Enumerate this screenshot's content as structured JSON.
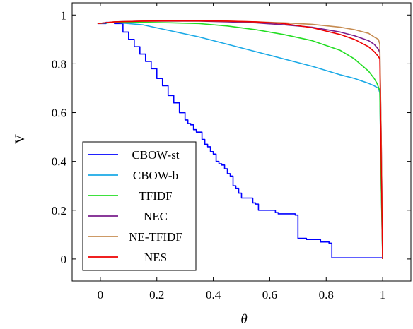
{
  "chart_data": {
    "type": "line",
    "xlabel": "θ",
    "ylabel": "V",
    "xlim": [
      -0.1,
      1.1
    ],
    "ylim": [
      -0.09,
      1.05
    ],
    "x_ticks": [
      0,
      0.2,
      0.4,
      0.6,
      0.8,
      1
    ],
    "y_ticks": [
      0,
      0.2,
      0.4,
      0.6,
      0.8,
      1
    ],
    "x_tick_labels": [
      "0",
      "0.2",
      "0.4",
      "0.6",
      "0.8",
      "1"
    ],
    "y_tick_labels": [
      "0",
      "0.2",
      "0.4",
      "0.6",
      "0.8",
      "1"
    ],
    "grid": false,
    "legend_position": "bottom-left",
    "series": [
      {
        "name": "CBOW-st",
        "color": "#0000ff",
        "x": [
          -0.01,
          0.02,
          0.05,
          0.08,
          0.1,
          0.12,
          0.14,
          0.16,
          0.18,
          0.2,
          0.22,
          0.24,
          0.26,
          0.28,
          0.3,
          0.31,
          0.32,
          0.33,
          0.34,
          0.36,
          0.37,
          0.38,
          0.39,
          0.4,
          0.41,
          0.42,
          0.43,
          0.44,
          0.45,
          0.46,
          0.47,
          0.48,
          0.49,
          0.5,
          0.51,
          0.54,
          0.55,
          0.56,
          0.62,
          0.63,
          0.69,
          0.7,
          0.73,
          0.78,
          0.79,
          0.81,
          0.82,
          0.86,
          0.95,
          0.99,
          1.0
        ],
        "y": [
          0.965,
          0.97,
          0.965,
          0.93,
          0.9,
          0.87,
          0.84,
          0.81,
          0.78,
          0.74,
          0.71,
          0.67,
          0.64,
          0.6,
          0.57,
          0.555,
          0.55,
          0.53,
          0.52,
          0.49,
          0.47,
          0.46,
          0.44,
          0.43,
          0.4,
          0.39,
          0.385,
          0.37,
          0.35,
          0.34,
          0.3,
          0.29,
          0.27,
          0.25,
          0.25,
          0.23,
          0.225,
          0.2,
          0.19,
          0.185,
          0.18,
          0.085,
          0.08,
          0.07,
          0.07,
          0.065,
          0.005,
          0.005,
          0.005,
          0.005,
          0.0
        ],
        "step": true
      },
      {
        "name": "CBOW-b",
        "color": "#1aa9e6",
        "x": [
          -0.01,
          0.05,
          0.15,
          0.25,
          0.35,
          0.45,
          0.55,
          0.65,
          0.75,
          0.85,
          0.9,
          0.95,
          0.97,
          0.985,
          0.99,
          0.995,
          1.0
        ],
        "y": [
          0.965,
          0.97,
          0.96,
          0.935,
          0.91,
          0.88,
          0.85,
          0.82,
          0.79,
          0.755,
          0.74,
          0.72,
          0.71,
          0.7,
          0.68,
          0.3,
          0.0
        ]
      },
      {
        "name": "TFIDF",
        "color": "#22dd22",
        "x": [
          -0.01,
          0.05,
          0.15,
          0.25,
          0.35,
          0.45,
          0.55,
          0.65,
          0.75,
          0.85,
          0.9,
          0.93,
          0.95,
          0.97,
          0.98,
          0.99,
          0.995,
          1.0
        ],
        "y": [
          0.965,
          0.97,
          0.97,
          0.968,
          0.965,
          0.955,
          0.94,
          0.92,
          0.895,
          0.855,
          0.82,
          0.79,
          0.77,
          0.74,
          0.72,
          0.69,
          0.3,
          0.0
        ]
      },
      {
        "name": "NEC",
        "color": "#7a1e8c",
        "x": [
          -0.01,
          0.05,
          0.15,
          0.25,
          0.35,
          0.45,
          0.55,
          0.65,
          0.75,
          0.85,
          0.9,
          0.95,
          0.97,
          0.985,
          0.99,
          0.995,
          1.0
        ],
        "y": [
          0.965,
          0.972,
          0.975,
          0.975,
          0.975,
          0.972,
          0.968,
          0.96,
          0.95,
          0.93,
          0.915,
          0.895,
          0.88,
          0.86,
          0.845,
          0.5,
          0.0
        ]
      },
      {
        "name": "NE-TFIDF",
        "color": "#c68b50",
        "x": [
          -0.01,
          0.05,
          0.15,
          0.25,
          0.35,
          0.45,
          0.55,
          0.65,
          0.75,
          0.85,
          0.9,
          0.95,
          0.97,
          0.985,
          0.99,
          0.995,
          1.0
        ],
        "y": [
          0.965,
          0.972,
          0.975,
          0.976,
          0.976,
          0.975,
          0.972,
          0.968,
          0.962,
          0.95,
          0.94,
          0.925,
          0.91,
          0.9,
          0.88,
          0.5,
          0.0
        ]
      },
      {
        "name": "NES",
        "color": "#ee0000",
        "x": [
          -0.01,
          0.05,
          0.15,
          0.25,
          0.35,
          0.45,
          0.55,
          0.65,
          0.75,
          0.85,
          0.9,
          0.95,
          0.97,
          0.985,
          0.99,
          0.995,
          1.0
        ],
        "y": [
          0.965,
          0.972,
          0.975,
          0.976,
          0.976,
          0.975,
          0.972,
          0.965,
          0.948,
          0.92,
          0.9,
          0.87,
          0.85,
          0.83,
          0.82,
          0.4,
          0.0
        ]
      }
    ]
  }
}
